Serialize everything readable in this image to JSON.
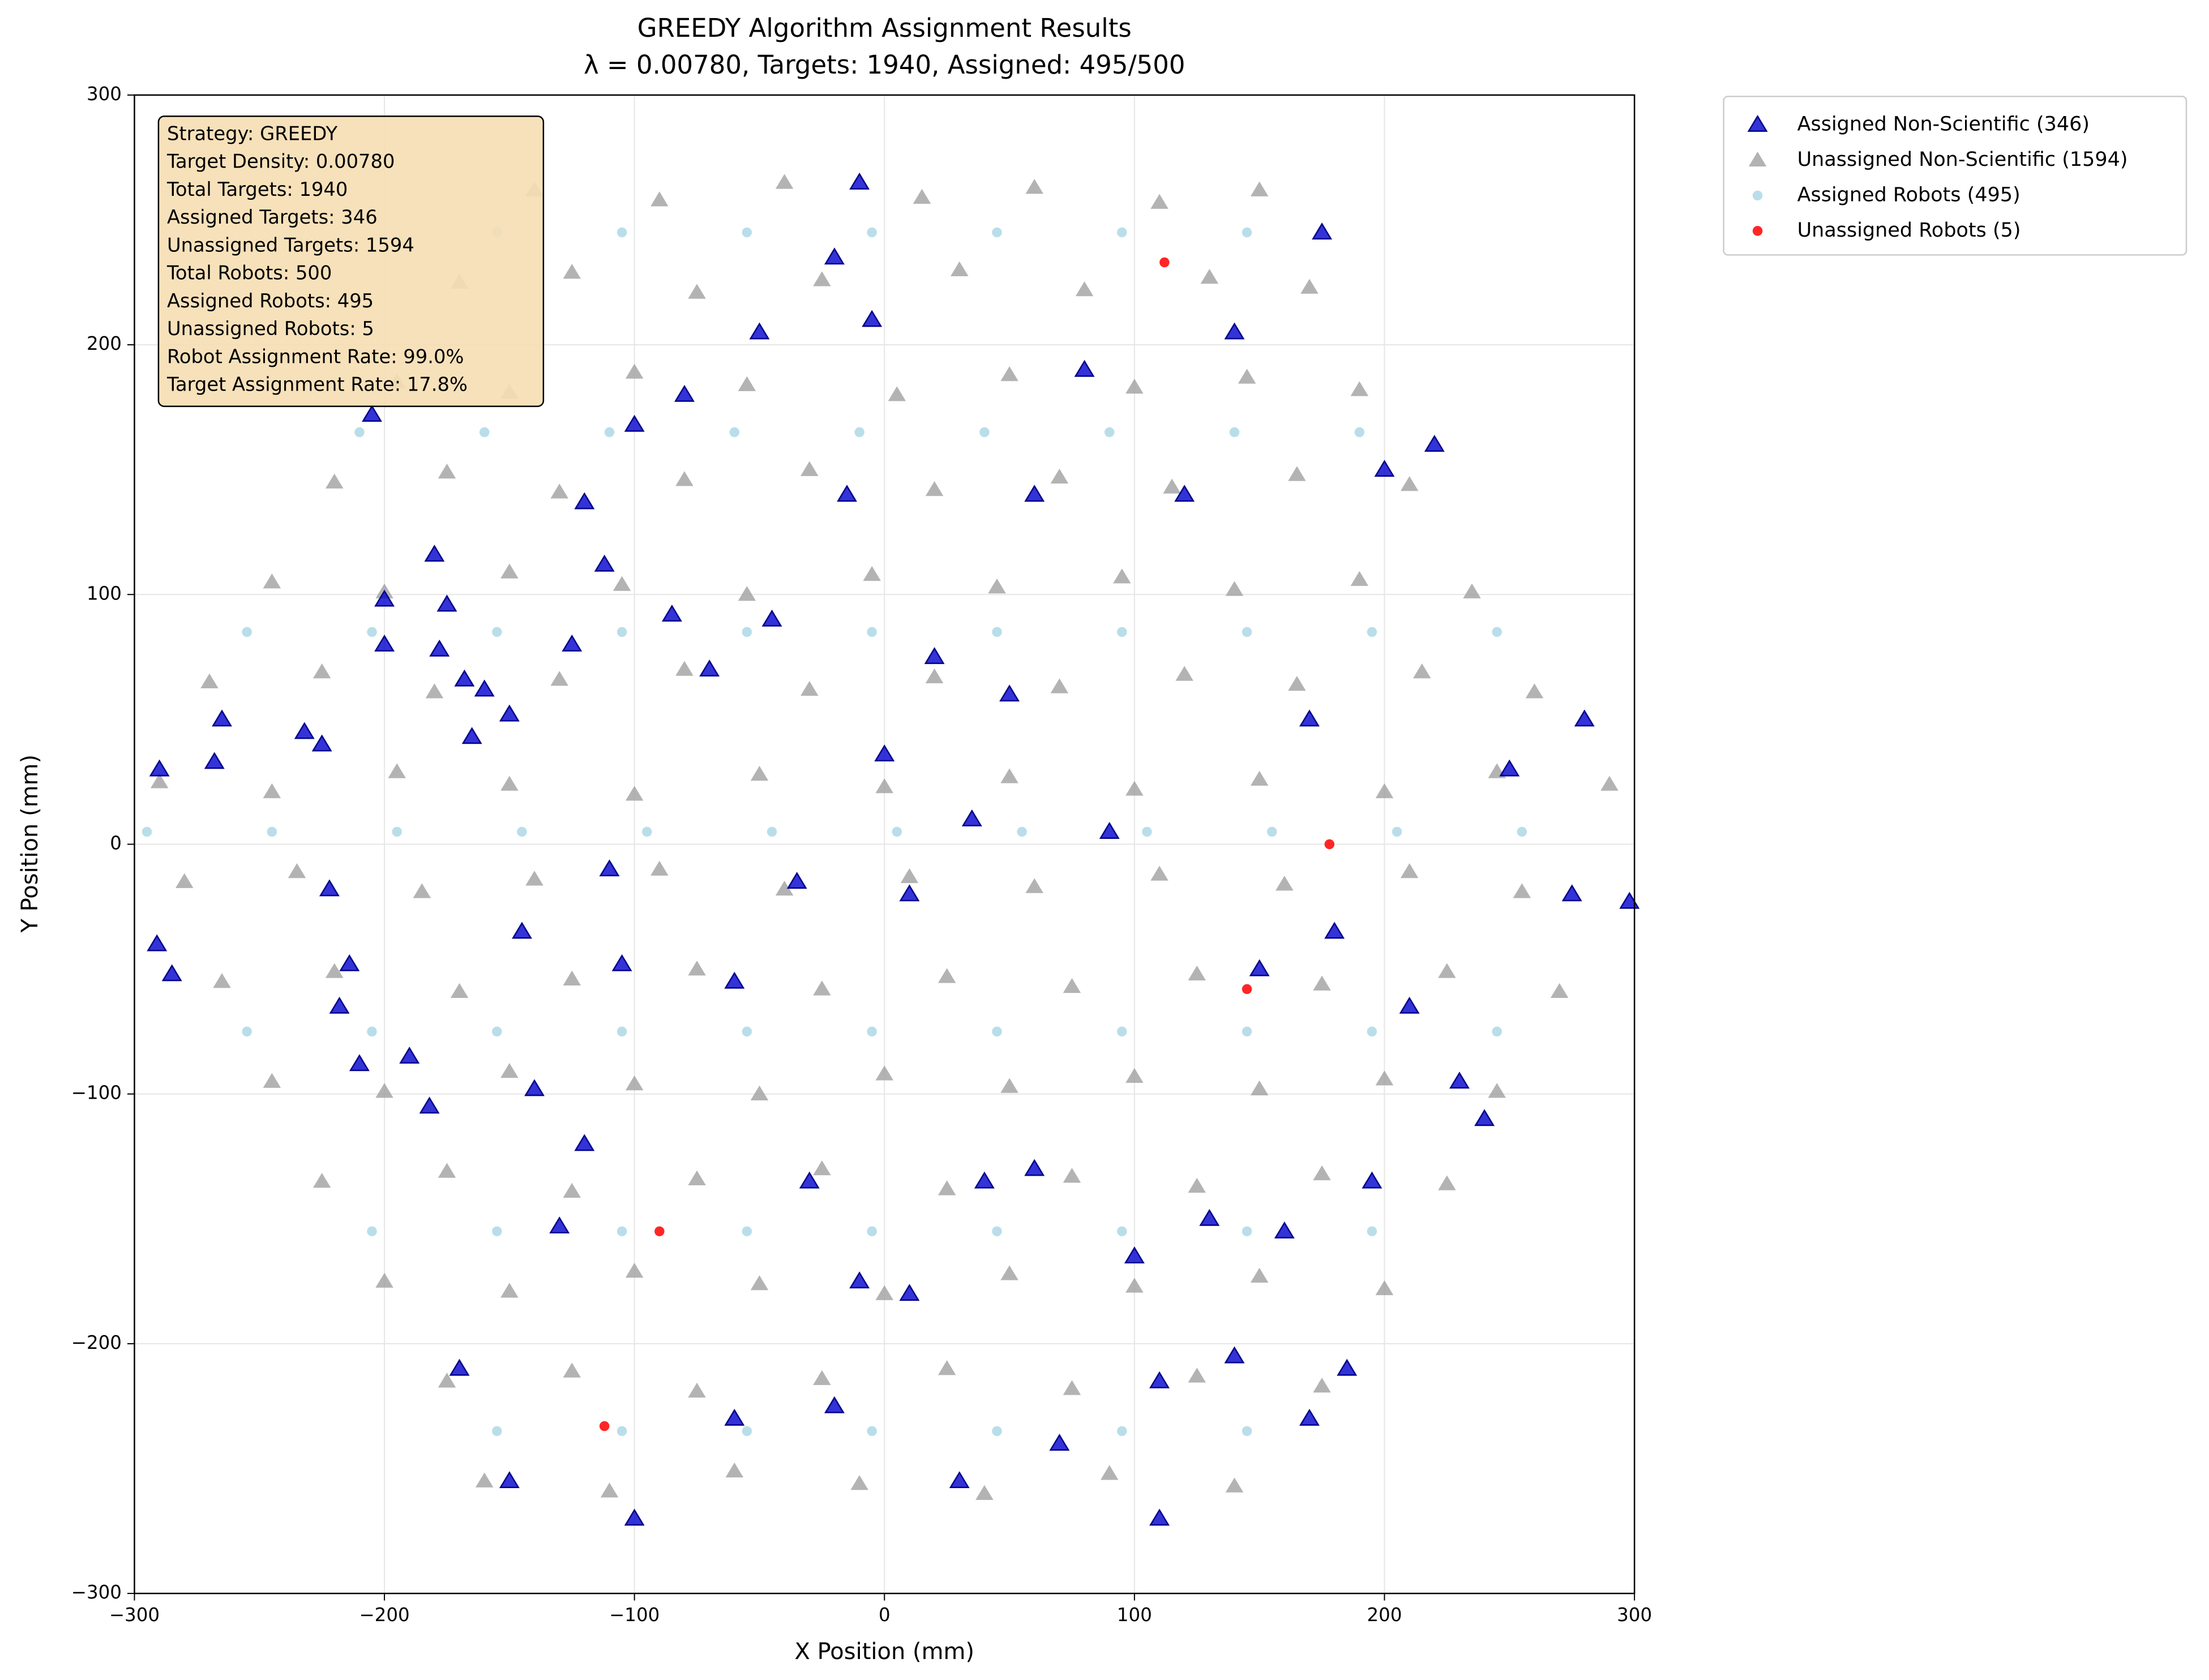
{
  "chart_data": {
    "type": "scatter",
    "title": [
      "GREEDY Algorithm Assignment Results",
      "λ = 0.00780, Targets: 1940, Assigned: 495/500"
    ],
    "x_label": "X Position (mm)",
    "y_label": "Y Position (mm)",
    "xlim": [
      -300,
      300
    ],
    "ylim": [
      -300,
      300
    ],
    "xticks": [
      {
        "value": -300,
        "label": "−300"
      },
      {
        "value": -200,
        "label": "−200"
      },
      {
        "value": -100,
        "label": "−100"
      },
      0,
      100,
      200,
      300
    ],
    "yticks": [
      {
        "value": -300,
        "label": "−300"
      },
      {
        "value": -200,
        "label": "−200"
      },
      {
        "value": -100,
        "label": "−100"
      },
      0,
      100,
      200,
      300
    ],
    "grid": true,
    "legend": "outside upper right",
    "annotation": [
      "Strategy: GREEDY",
      "Target Density: 0.00780",
      "Total Targets: 1940",
      "Assigned Targets: 346",
      "Unassigned Targets: 1594",
      "Total Robots: 500",
      "Assigned Robots: 495",
      "Unassigned Robots: 5",
      "Robot Assignment Rate: 99.0%",
      "Target Assignment Rate: 17.8%"
    ],
    "series": [
      {
        "name": "Assigned Non-Scientific (346)",
        "color": "#0000cd",
        "marker": "triangle",
        "x": [
          -290,
          -291,
          -285,
          -268,
          -265,
          -232,
          -225,
          -222,
          -214,
          -218,
          -210,
          -205,
          -200,
          -200,
          -190,
          -182,
          -180,
          -178,
          -175,
          -168,
          -165,
          -160,
          -150,
          -145,
          -140,
          -130,
          -125,
          -120,
          -112,
          -110,
          -105,
          -100,
          -85,
          -80,
          -70,
          -60,
          -50,
          -45,
          -35,
          -30,
          -20,
          -15,
          -10,
          -5,
          0,
          10,
          20,
          35,
          40,
          50,
          60,
          70,
          80,
          90,
          100,
          110,
          120,
          130,
          140,
          150,
          160,
          170,
          175,
          180,
          185,
          195,
          200,
          210,
          220,
          230,
          240,
          250,
          280,
          298,
          275,
          -60,
          -100,
          -150,
          -170,
          -20,
          30,
          110,
          -10,
          10,
          60,
          -120,
          140,
          170
        ],
        "values": [
          30,
          -40,
          -52,
          33,
          50,
          45,
          40,
          -18,
          -48,
          -65,
          -88,
          172,
          98,
          80,
          -85,
          -105,
          116,
          78,
          96,
          66,
          43,
          62,
          52,
          -35,
          -98,
          -153,
          80,
          137,
          112,
          -10,
          -48,
          168,
          92,
          180,
          70,
          -55,
          205,
          90,
          -15,
          -135,
          235,
          140,
          265,
          210,
          36,
          -20,
          75,
          10,
          -135,
          60,
          140,
          -240,
          190,
          5,
          -165,
          -215,
          140,
          -150,
          205,
          -50,
          -155,
          50,
          245,
          -35,
          -210,
          -135,
          150,
          -65,
          160,
          -95,
          -110,
          30,
          50,
          -23,
          -20,
          -230,
          -270,
          -255,
          -210,
          -225,
          -255,
          -270,
          -175,
          -180,
          -130,
          -120,
          -205,
          -230
        ]
      },
      {
        "name": "Unassigned Non-Scientific (1594)",
        "color": "#a0a0a0",
        "marker": "triangle",
        "x": [
          -140,
          -90,
          -40,
          15,
          60,
          110,
          150,
          -170,
          -125,
          -75,
          -25,
          30,
          80,
          130,
          170,
          -195,
          -150,
          -100,
          -55,
          5,
          50,
          100,
          145,
          190,
          -220,
          -175,
          -130,
          -80,
          -30,
          20,
          70,
          115,
          165,
          210,
          -245,
          -200,
          -150,
          -105,
          -55,
          -5,
          45,
          95,
          140,
          190,
          235,
          -270,
          -225,
          -180,
          -130,
          -80,
          -30,
          20,
          70,
          120,
          165,
          215,
          260,
          -290,
          -245,
          -195,
          -150,
          -100,
          -50,
          0,
          50,
          100,
          150,
          200,
          245,
          290,
          -280,
          -235,
          -185,
          -140,
          -90,
          -40,
          10,
          60,
          110,
          160,
          210,
          255,
          -265,
          -220,
          -170,
          -125,
          -75,
          -25,
          25,
          75,
          125,
          175,
          225,
          270,
          -245,
          -200,
          -150,
          -100,
          -50,
          0,
          50,
          100,
          150,
          200,
          245,
          -225,
          -175,
          -125,
          -75,
          -25,
          25,
          75,
          125,
          175,
          225,
          -200,
          -150,
          -100,
          -50,
          0,
          50,
          100,
          150,
          200,
          -175,
          -125,
          -75,
          -25,
          25,
          75,
          125,
          175,
          -160,
          -110,
          -60,
          -10,
          40,
          90,
          140
        ],
        "values": [
          262,
          258,
          265,
          259,
          263,
          257,
          262,
          225,
          229,
          221,
          226,
          230,
          222,
          227,
          223,
          185,
          181,
          189,
          184,
          180,
          188,
          183,
          187,
          182,
          145,
          149,
          141,
          146,
          150,
          142,
          147,
          143,
          148,
          144,
          105,
          101,
          109,
          104,
          100,
          108,
          103,
          107,
          102,
          106,
          101,
          65,
          69,
          61,
          66,
          70,
          62,
          67,
          63,
          68,
          64,
          69,
          61,
          25,
          21,
          29,
          24,
          20,
          28,
          23,
          27,
          22,
          26,
          21,
          29,
          24,
          -15,
          -11,
          -19,
          -14,
          -10,
          -18,
          -13,
          -17,
          -12,
          -16,
          -11,
          -19,
          -55,
          -51,
          -59,
          -54,
          -50,
          -58,
          -53,
          -57,
          -52,
          -56,
          -51,
          -59,
          -95,
          -99,
          -91,
          -96,
          -100,
          -92,
          -97,
          -93,
          -98,
          -94,
          -99,
          -135,
          -131,
          -139,
          -134,
          -130,
          -138,
          -133,
          -137,
          -132,
          -136,
          -175,
          -179,
          -171,
          -176,
          -180,
          -172,
          -177,
          -173,
          -178,
          -215,
          -211,
          -219,
          -214,
          -210,
          -218,
          -213,
          -217,
          -255,
          -259,
          -251,
          -256,
          -260,
          -252,
          -257
        ]
      },
      {
        "name": "Assigned Robots (495)",
        "color": "#add8e6",
        "marker": "circle",
        "x": [
          -155,
          -105,
          -55,
          -5,
          45,
          95,
          145,
          -210,
          -160,
          -110,
          -60,
          -10,
          40,
          90,
          140,
          190,
          -255,
          -205,
          -155,
          -105,
          -55,
          -5,
          45,
          95,
          145,
          195,
          245,
          -295,
          -245,
          -195,
          -145,
          -95,
          -45,
          5,
          55,
          105,
          155,
          205,
          255,
          -255,
          -205,
          -155,
          -105,
          -55,
          -5,
          45,
          95,
          145,
          195,
          245,
          -205,
          -155,
          -105,
          -55,
          -5,
          45,
          95,
          145,
          195,
          -155,
          -105,
          -55,
          -5,
          45,
          95,
          145
        ],
        "values": [
          245,
          245,
          245,
          245,
          245,
          245,
          245,
          165,
          165,
          165,
          165,
          165,
          165,
          165,
          165,
          165,
          85,
          85,
          85,
          85,
          85,
          85,
          85,
          85,
          85,
          85,
          85,
          5,
          5,
          5,
          5,
          5,
          5,
          5,
          5,
          5,
          5,
          5,
          5,
          -75,
          -75,
          -75,
          -75,
          -75,
          -75,
          -75,
          -75,
          -75,
          -75,
          -75,
          -155,
          -155,
          -155,
          -155,
          -155,
          -155,
          -155,
          -155,
          -155,
          -235,
          -235,
          -235,
          -235,
          -235,
          -235,
          -235
        ]
      },
      {
        "name": "Unassigned Robots (5)",
        "color": "#ff0000",
        "marker": "circle",
        "x": [
          112,
          178,
          145,
          -90,
          -112
        ],
        "values": [
          233,
          0,
          -58,
          -155,
          -233
        ]
      }
    ]
  }
}
